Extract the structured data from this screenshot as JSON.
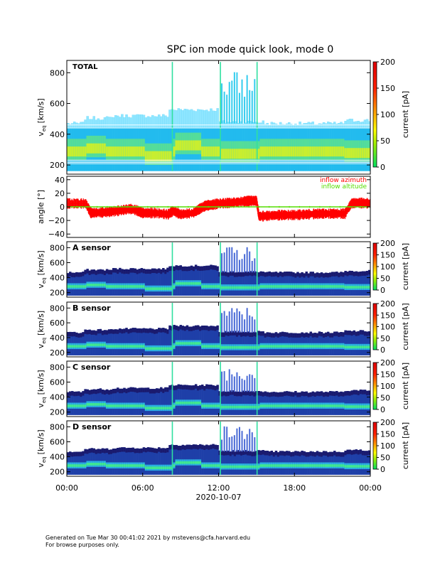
{
  "title": "SPC ion mode quick look, mode 0",
  "footer": {
    "line1": "Generated on Tue Mar 30 00:41:02 2021 by mstevens@cfa.harvard.edu",
    "line2": "For browse purposes only."
  },
  "chart_data": {
    "x_axis": {
      "date_label": "2020-10-07",
      "tick_labels": [
        "00:00",
        "06:00",
        "12:00",
        "18:00",
        "00:00"
      ],
      "range_hours": [
        0,
        24
      ]
    },
    "spectrogram_panels": [
      {
        "label": "TOTAL",
        "ylabel_main": "v",
        "ylabel_sub": "eq",
        "ylabel_unit": "[km/s]",
        "ylim": [
          140,
          880
        ],
        "yticks": [
          200,
          400,
          600,
          800
        ],
        "ytick_labels": [
          "200",
          "400",
          "600",
          "800"
        ],
        "colorbar": {
          "label": "current [pA]",
          "range": [
            0,
            200
          ],
          "ticks": [
            0,
            50,
            100,
            150,
            200
          ],
          "tick_labels": [
            "0",
            "50",
            "100",
            "150",
            "200"
          ]
        }
      },
      {
        "label": "A sensor",
        "ylabel_main": "v",
        "ylabel_sub": "eq",
        "ylabel_unit": "[km/s]",
        "ylim": [
          140,
          880
        ],
        "yticks": [
          200,
          400,
          600,
          800
        ],
        "ytick_labels": [
          "200",
          "400",
          "600",
          "800"
        ],
        "colorbar": {
          "label": "current [pA]",
          "range": [
            0,
            200
          ],
          "ticks": [
            0,
            50,
            100,
            150,
            200
          ],
          "tick_labels": [
            "0",
            "50",
            "100",
            "150",
            "200"
          ]
        }
      },
      {
        "label": "B sensor",
        "ylabel_main": "v",
        "ylabel_sub": "eq",
        "ylabel_unit": "[km/s]",
        "ylim": [
          140,
          880
        ],
        "yticks": [
          200,
          400,
          600,
          800
        ],
        "ytick_labels": [
          "200",
          "400",
          "600",
          "800"
        ],
        "colorbar": {
          "label": "current [pA]",
          "range": [
            0,
            200
          ],
          "ticks": [
            0,
            50,
            100,
            150,
            200
          ],
          "tick_labels": [
            "0",
            "50",
            "100",
            "150",
            "200"
          ]
        }
      },
      {
        "label": "C sensor",
        "ylabel_main": "v",
        "ylabel_sub": "eq",
        "ylabel_unit": "[km/s]",
        "ylim": [
          140,
          880
        ],
        "yticks": [
          200,
          400,
          600,
          800
        ],
        "ytick_labels": [
          "200",
          "400",
          "600",
          "800"
        ],
        "colorbar": {
          "label": "current [pA]",
          "range": [
            0,
            200
          ],
          "ticks": [
            0,
            50,
            100,
            150,
            200
          ],
          "tick_labels": [
            "0",
            "50",
            "100",
            "150",
            "200"
          ]
        }
      },
      {
        "label": "D sensor",
        "ylabel_main": "v",
        "ylabel_sub": "eq",
        "ylabel_unit": "[km/s]",
        "ylim": [
          140,
          880
        ],
        "yticks": [
          200,
          400,
          600,
          800
        ],
        "ytick_labels": [
          "200",
          "400",
          "600",
          "800"
        ],
        "colorbar": {
          "label": "current [pA]",
          "range": [
            0,
            200
          ],
          "ticks": [
            0,
            50,
            100,
            150,
            200
          ],
          "tick_labels": [
            "0",
            "50",
            "100",
            "150",
            "200"
          ]
        }
      }
    ],
    "angle_panel": {
      "type": "line",
      "ylabel": "angle [°]",
      "ylim": [
        -45,
        45
      ],
      "yticks": [
        -40,
        -20,
        0,
        20,
        40
      ],
      "ytick_labels": [
        "−40",
        "−20",
        "0",
        "20",
        "40"
      ],
      "series": [
        {
          "name": "inflow azimuth",
          "color": "#ff0000",
          "x": [
            0,
            1.5,
            1.9,
            3.0,
            4.0,
            5.0,
            5.5,
            6.0,
            7.0,
            8.0,
            8.4,
            9.0,
            10.0,
            10.5,
            11.0,
            11.5,
            12.0,
            13.0,
            14.0,
            14.5,
            15.0,
            15.2,
            16.0,
            17.0,
            18.0,
            19.0,
            20.0,
            21.0,
            22.0,
            22.5,
            23.0,
            24.0
          ],
          "y": [
            5,
            5,
            -9,
            -8,
            -6,
            -3,
            -5,
            -9,
            -9,
            -11,
            -6,
            -11,
            -9,
            -3,
            2,
            3,
            5,
            6,
            8,
            9,
            9,
            -14,
            -13,
            -12,
            -12,
            -11,
            -10,
            -10,
            -10,
            5,
            6,
            5
          ]
        },
        {
          "name": "inflow altitude",
          "color": "#55dd00",
          "x": [
            0,
            24
          ],
          "y": [
            0,
            0
          ]
        }
      ]
    },
    "spectrogram_feature_hours": [
      8.3,
      12.1,
      15.0
    ]
  },
  "colors": {
    "azimuth": "#ff0000",
    "altitude": "#55dd00"
  }
}
